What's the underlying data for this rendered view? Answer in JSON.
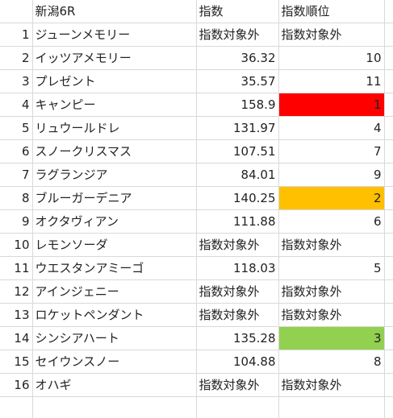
{
  "header": {
    "rownum": "",
    "name": "新潟6R",
    "index": "指数",
    "rank": "指数順位"
  },
  "colors": {
    "red": "#ff0000",
    "orange": "#ffc000",
    "green": "#92d050",
    "gridline": "#d9d9d9"
  },
  "rows": [
    {
      "num": "1",
      "name": "ジューンメモリー",
      "index": "指数対象外",
      "rank": "指数対象外"
    },
    {
      "num": "2",
      "name": "イッツアメモリー",
      "index": "36.32",
      "rank": "10"
    },
    {
      "num": "3",
      "name": "プレゼント",
      "index": "35.57",
      "rank": "11"
    },
    {
      "num": "4",
      "name": "キャンピー",
      "index": "158.9",
      "rank": "1"
    },
    {
      "num": "5",
      "name": "リュウールドレ",
      "index": "131.97",
      "rank": "4"
    },
    {
      "num": "6",
      "name": "スノークリスマス",
      "index": "107.51",
      "rank": "7"
    },
    {
      "num": "7",
      "name": "ラグランジア",
      "index": "84.01",
      "rank": "9"
    },
    {
      "num": "8",
      "name": "ブルーガーデニア",
      "index": "140.25",
      "rank": "2"
    },
    {
      "num": "9",
      "name": "オクタヴィアン",
      "index": "111.88",
      "rank": "6"
    },
    {
      "num": "10",
      "name": "レモンソーダ",
      "index": "指数対象外",
      "rank": "指数対象外"
    },
    {
      "num": "11",
      "name": "ウエスタンアミーゴ",
      "index": "118.03",
      "rank": "5"
    },
    {
      "num": "12",
      "name": "アインジェニー",
      "index": "指数対象外",
      "rank": "指数対象外"
    },
    {
      "num": "13",
      "name": "ロケットペンダント",
      "index": "指数対象外",
      "rank": "指数対象外"
    },
    {
      "num": "14",
      "name": "シンシアハート",
      "index": "135.28",
      "rank": "3"
    },
    {
      "num": "15",
      "name": "セイウンスノー",
      "index": "104.88",
      "rank": "8"
    },
    {
      "num": "16",
      "name": "オハギ",
      "index": "指数対象外",
      "rank": "指数対象外"
    }
  ]
}
